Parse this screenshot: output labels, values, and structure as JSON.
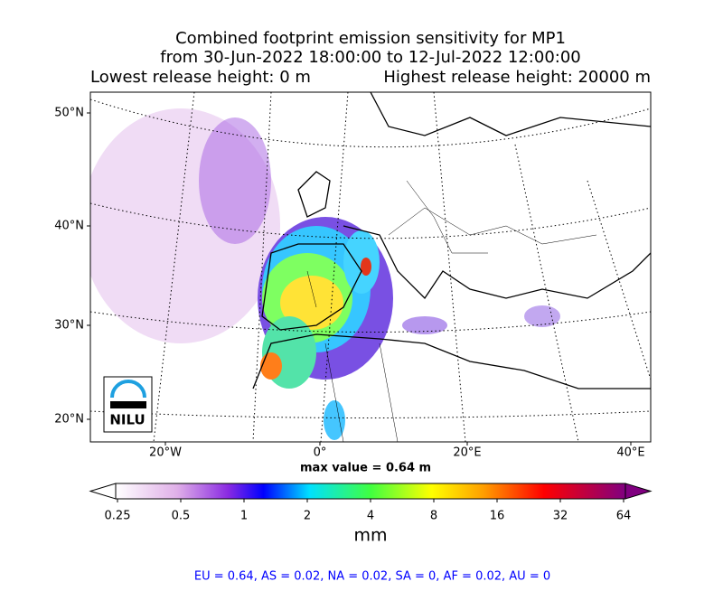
{
  "title": [
    "Combined footprint emission sensitivity for MP1",
    "from 30-Jun-2022 18:00:00 to 12-Jul-2022 12:00:00"
  ],
  "release": {
    "lowest": "Lowest release height: 0 m",
    "highest": "Highest release height: 20000 m"
  },
  "map": {
    "lat_labels": [
      "50°N",
      "40°N",
      "30°N",
      "20°N"
    ],
    "lon_labels": [
      "20°W",
      "0°",
      "20°E",
      "40°E"
    ],
    "logo": "NILU"
  },
  "max_value": "max value = 0.64 m",
  "colorbar": {
    "ticks": [
      0.25,
      0.5,
      1,
      2,
      4,
      8,
      16,
      32,
      64
    ],
    "label": "mm"
  },
  "footer": "EU = 0.64,  AS = 0.02,  NA = 0.02,  SA = 0,  AF = 0.02,  AU = 0"
}
